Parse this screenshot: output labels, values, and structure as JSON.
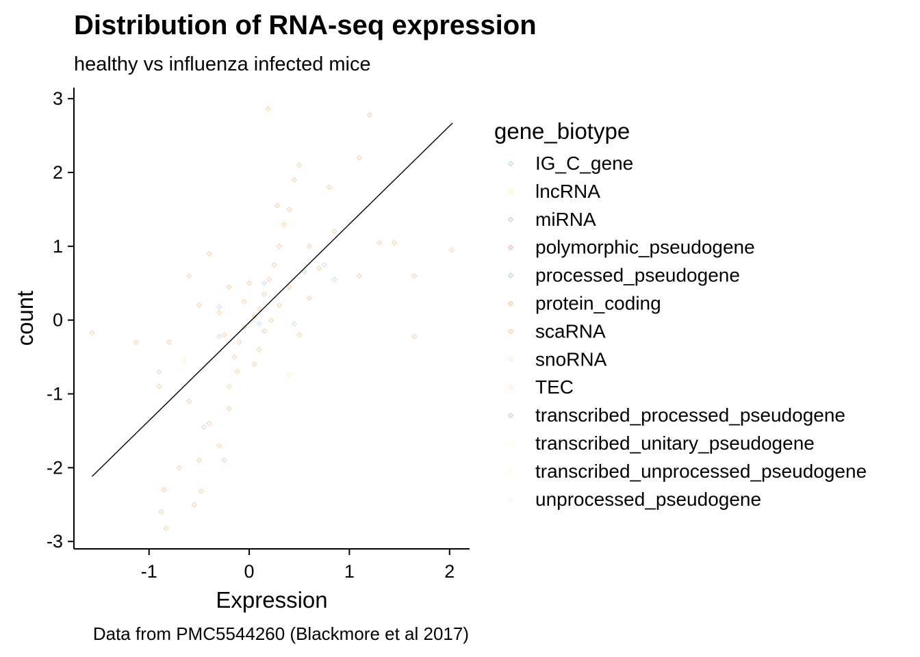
{
  "chart_data": {
    "type": "scatter",
    "title": "Distribution of RNA-seq expression",
    "subtitle": "healthy vs influenza infected mice",
    "caption": "Data from PMC5544260 (Blackmore et al 2017)",
    "xlabel": "Expression",
    "ylabel": "count",
    "xlim": [
      -1.75,
      2.2
    ],
    "ylim": [
      -3.1,
      3.15
    ],
    "x_ticks": [
      -1,
      0,
      1,
      2
    ],
    "y_ticks": [
      -3,
      -2,
      -1,
      0,
      1,
      2,
      3
    ],
    "x_tick_labels": [
      "-1",
      "0",
      "1",
      "2"
    ],
    "y_tick_labels": [
      "-3",
      "-2",
      "-1",
      "0",
      "1",
      "2",
      "3"
    ],
    "grid": false,
    "legend_title": "gene_biotype",
    "legend_position": "right",
    "trend_line": {
      "x": [
        -1.57,
        2.03
      ],
      "y": [
        -2.12,
        2.67
      ]
    },
    "series": [
      {
        "name": "IG_C_gene",
        "color": "#a6cee3"
      },
      {
        "name": "lncRNA",
        "color": "#ffeda0"
      },
      {
        "name": "miRNA",
        "color": "#cab2d6"
      },
      {
        "name": "polymorphic_pseudogene",
        "color": "#fb9a99"
      },
      {
        "name": "processed_pseudogene",
        "color": "#9ecae1"
      },
      {
        "name": "protein_coding",
        "color": "#fdb462"
      },
      {
        "name": "scaRNA",
        "color": "#fdbf6f"
      },
      {
        "name": "snoRNA",
        "color": "#ffe4b5"
      },
      {
        "name": "TEC",
        "color": "#fee6ce"
      },
      {
        "name": "transcribed_processed_pseudogene",
        "color": "#bcbddc"
      },
      {
        "name": "transcribed_unitary_pseudogene",
        "color": "#ffffcc"
      },
      {
        "name": "transcribed_unprocessed_pseudogene",
        "color": "#ffffb3"
      },
      {
        "name": "unprocessed_pseudogene",
        "color": "#f0f0f0"
      }
    ],
    "points": [
      {
        "series": "protein_coding",
        "x": 0.05,
        "y": 0.05
      },
      {
        "series": "protein_coding",
        "x": 0.1,
        "y": 0.15
      },
      {
        "series": "protein_coding",
        "x": -0.05,
        "y": -0.1
      },
      {
        "series": "protein_coding",
        "x": 0.15,
        "y": 0.35
      },
      {
        "series": "protein_coding",
        "x": 0.2,
        "y": 0.55
      },
      {
        "series": "protein_coding",
        "x": 0.25,
        "y": 0.75
      },
      {
        "series": "protein_coding",
        "x": -0.1,
        "y": -0.3
      },
      {
        "series": "protein_coding",
        "x": -0.15,
        "y": -0.5
      },
      {
        "series": "protein_coding",
        "x": -0.12,
        "y": -0.7
      },
      {
        "series": "protein_coding",
        "x": -0.2,
        "y": -0.9
      },
      {
        "series": "protein_coding",
        "x": 0.3,
        "y": 1.0
      },
      {
        "series": "protein_coding",
        "x": 0.35,
        "y": 1.3
      },
      {
        "series": "protein_coding",
        "x": 0.4,
        "y": 1.5
      },
      {
        "series": "protein_coding",
        "x": 0.28,
        "y": 1.55
      },
      {
        "series": "protein_coding",
        "x": 0.45,
        "y": 1.9
      },
      {
        "series": "protein_coding",
        "x": 0.5,
        "y": 2.1
      },
      {
        "series": "protein_coding",
        "x": 0.19,
        "y": 2.86
      },
      {
        "series": "protein_coding",
        "x": 1.2,
        "y": 2.78
      },
      {
        "series": "protein_coding",
        "x": 1.1,
        "y": 2.2
      },
      {
        "series": "protein_coding",
        "x": 0.8,
        "y": 1.8
      },
      {
        "series": "protein_coding",
        "x": 0.85,
        "y": 1.2
      },
      {
        "series": "protein_coding",
        "x": 1.3,
        "y": 1.05
      },
      {
        "series": "protein_coding",
        "x": 1.45,
        "y": 1.05
      },
      {
        "series": "protein_coding",
        "x": 1.65,
        "y": 0.6
      },
      {
        "series": "protein_coding",
        "x": 2.02,
        "y": 0.95
      },
      {
        "series": "protein_coding",
        "x": 1.65,
        "y": -0.22
      },
      {
        "series": "protein_coding",
        "x": 1.1,
        "y": 0.6
      },
      {
        "series": "protein_coding",
        "x": 0.6,
        "y": 0.3
      },
      {
        "series": "protein_coding",
        "x": 0.5,
        "y": -0.2
      },
      {
        "series": "protein_coding",
        "x": -0.4,
        "y": 0.9
      },
      {
        "series": "protein_coding",
        "x": -0.6,
        "y": 0.6
      },
      {
        "series": "protein_coding",
        "x": -0.5,
        "y": 0.2
      },
      {
        "series": "protein_coding",
        "x": -0.8,
        "y": -0.3
      },
      {
        "series": "protein_coding",
        "x": -1.13,
        "y": -0.3
      },
      {
        "series": "protein_coding",
        "x": -1.57,
        "y": -0.17
      },
      {
        "series": "protein_coding",
        "x": -0.9,
        "y": -0.9
      },
      {
        "series": "protein_coding",
        "x": -0.6,
        "y": -1.1
      },
      {
        "series": "protein_coding",
        "x": -0.4,
        "y": -1.4
      },
      {
        "series": "protein_coding",
        "x": -0.3,
        "y": -1.7
      },
      {
        "series": "protein_coding",
        "x": -0.5,
        "y": -1.9
      },
      {
        "series": "protein_coding",
        "x": -0.7,
        "y": -2.0
      },
      {
        "series": "protein_coding",
        "x": -0.85,
        "y": -2.3
      },
      {
        "series": "protein_coding",
        "x": -0.48,
        "y": -2.32
      },
      {
        "series": "protein_coding",
        "x": -0.55,
        "y": -2.5
      },
      {
        "series": "protein_coding",
        "x": -0.88,
        "y": -2.6
      },
      {
        "series": "protein_coding",
        "x": -0.83,
        "y": -2.82
      },
      {
        "series": "protein_coding",
        "x": -0.2,
        "y": -1.2
      },
      {
        "series": "protein_coding",
        "x": 0.1,
        "y": -0.4
      },
      {
        "series": "protein_coding",
        "x": 0.3,
        "y": 0.2
      },
      {
        "series": "protein_coding",
        "x": 0.4,
        "y": 0.45
      },
      {
        "series": "protein_coding",
        "x": 0.0,
        "y": 0.5
      },
      {
        "series": "protein_coding",
        "x": -0.05,
        "y": 0.25
      },
      {
        "series": "protein_coding",
        "x": 0.15,
        "y": -0.15
      },
      {
        "series": "protein_coding",
        "x": -0.25,
        "y": -0.2
      },
      {
        "series": "protein_coding",
        "x": -0.3,
        "y": 0.1
      },
      {
        "series": "protein_coding",
        "x": 0.6,
        "y": 1.0
      },
      {
        "series": "protein_coding",
        "x": 0.7,
        "y": 0.7
      },
      {
        "series": "protein_coding",
        "x": 0.05,
        "y": -0.6
      },
      {
        "series": "protein_coding",
        "x": -0.2,
        "y": 0.45
      },
      {
        "series": "protein_coding",
        "x": 0.22,
        "y": 0.0
      },
      {
        "series": "processed_pseudogene",
        "x": -0.3,
        "y": 0.18
      },
      {
        "series": "processed_pseudogene",
        "x": -0.3,
        "y": -0.22
      },
      {
        "series": "processed_pseudogene",
        "x": 0.1,
        "y": -0.05
      },
      {
        "series": "processed_pseudogene",
        "x": 0.15,
        "y": 0.5
      },
      {
        "series": "processed_pseudogene",
        "x": 0.85,
        "y": 0.55
      },
      {
        "series": "processed_pseudogene",
        "x": 0.55,
        "y": 0.65
      },
      {
        "series": "processed_pseudogene",
        "x": -0.25,
        "y": -1.9
      },
      {
        "series": "processed_pseudogene",
        "x": -0.9,
        "y": -0.7
      },
      {
        "series": "processed_pseudogene",
        "x": 0.45,
        "y": -0.05
      },
      {
        "series": "processed_pseudogene",
        "x": -0.45,
        "y": -1.45
      },
      {
        "series": "IG_C_gene",
        "x": 0.75,
        "y": 0.75
      },
      {
        "series": "lncRNA",
        "x": -0.65,
        "y": -0.55
      },
      {
        "series": "lncRNA",
        "x": 0.4,
        "y": -0.75
      }
    ]
  }
}
